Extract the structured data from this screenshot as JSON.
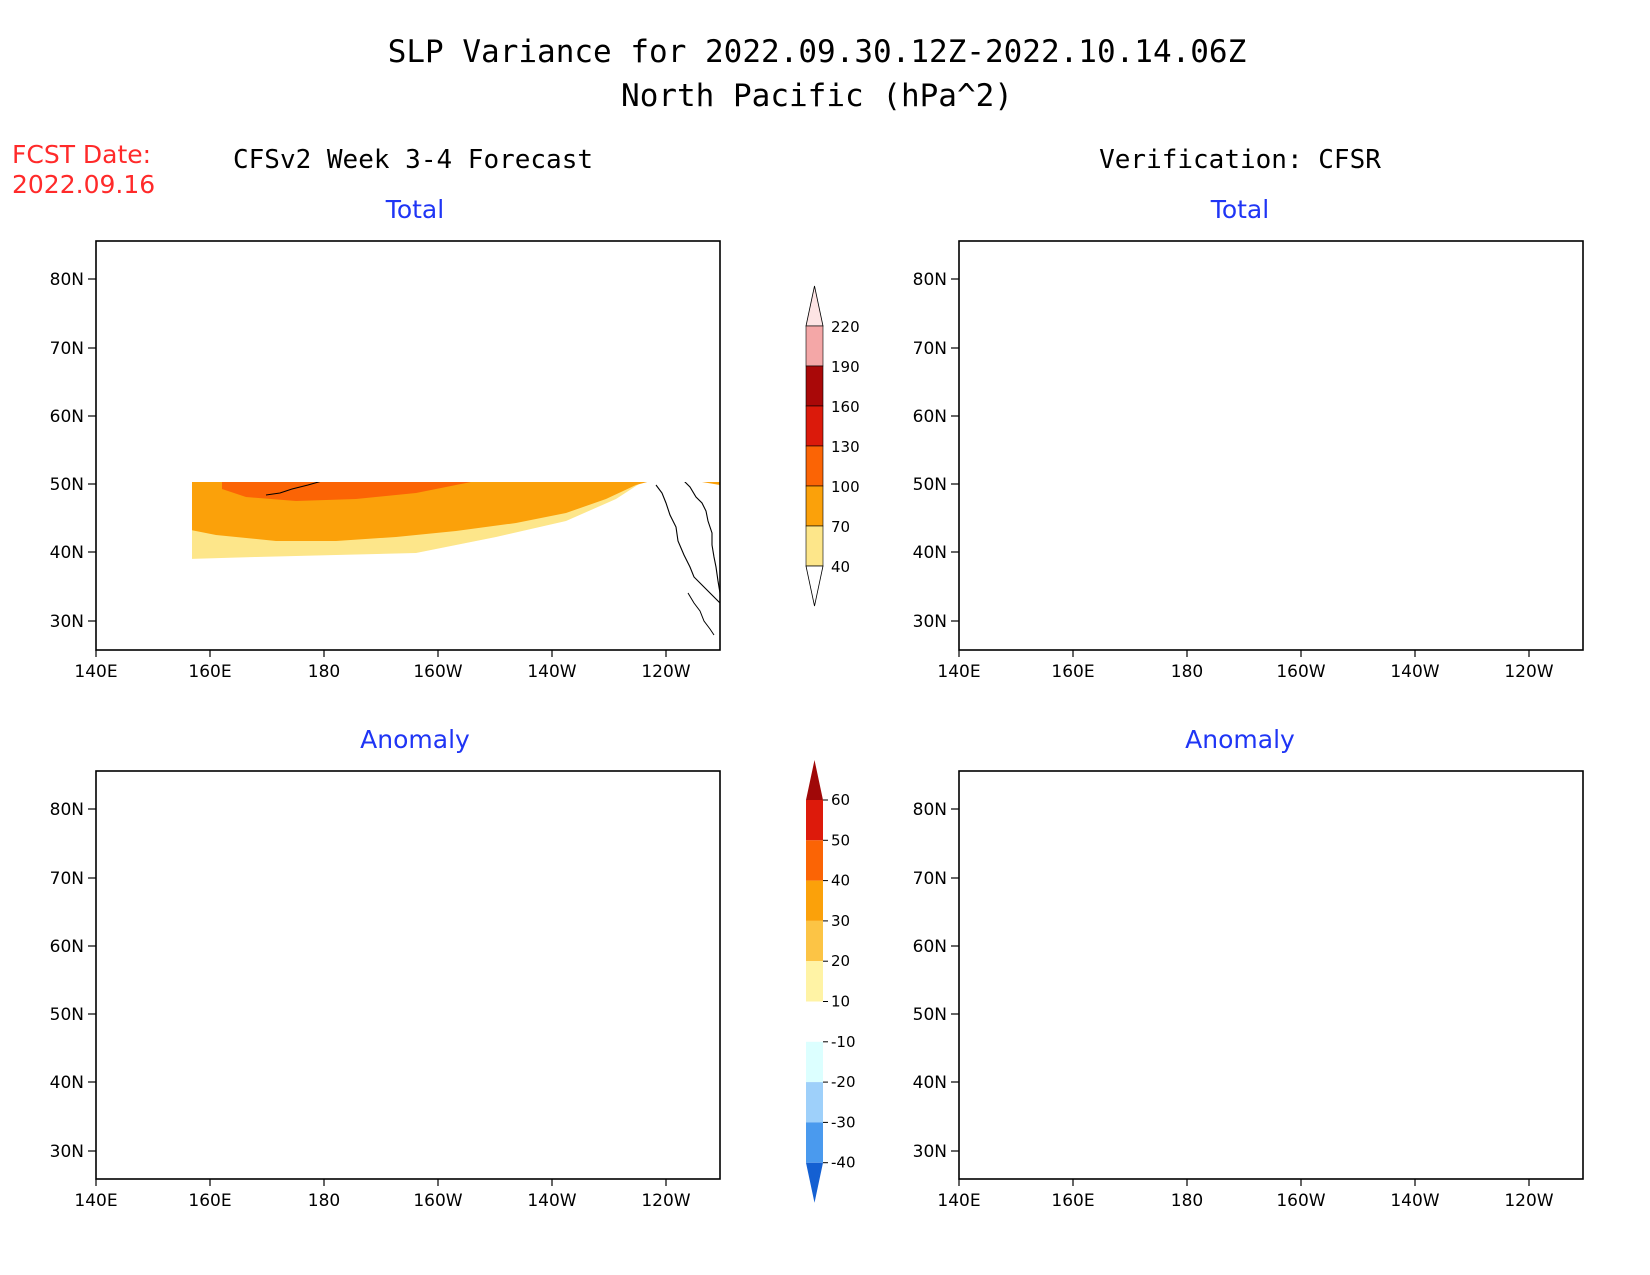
{
  "header": {
    "title_line1": "SLP Variance for 2022.09.30.12Z-2022.10.14.06Z",
    "title_line2": "North Pacific (hPa^2)"
  },
  "fcst": {
    "label": "FCST Date:",
    "date": "2022.09.16"
  },
  "columns": {
    "forecast": "CFSv2 Week 3-4 Forecast",
    "verification": "Verification: CFSR"
  },
  "panels": {
    "top_left": "Total",
    "top_right": "Total",
    "bottom_left": "Anomaly",
    "bottom_right": "Anomaly"
  },
  "axes": {
    "lat_labels": [
      "80N",
      "70N",
      "60N",
      "50N",
      "40N",
      "30N"
    ],
    "lon_labels": [
      "140E",
      "160E",
      "180",
      "160W",
      "140W",
      "120W"
    ]
  },
  "colorbars": {
    "total": {
      "levels": [
        "40",
        "70",
        "100",
        "130",
        "160",
        "190",
        "220"
      ],
      "colors": [
        "#ffffff",
        "#fde68a",
        "#fba10a",
        "#fb6405",
        "#db1a0b",
        "#a90808",
        "#f4a7a7",
        "#fde4e4"
      ]
    },
    "anomaly": {
      "levels": [
        "60",
        "50",
        "40",
        "30",
        "20",
        "10",
        "-10",
        "-20",
        "-30",
        "-40"
      ],
      "colors": [
        "#a00808",
        "#dd1a0b",
        "#fb6405",
        "#fba10a",
        "#fcc445",
        "#fff3a5",
        "#ffffff",
        "#dcffff",
        "#9ed0fa",
        "#4a9aee",
        "#1460d2"
      ]
    }
  },
  "palette": {
    "title_blue": "#1f35f5",
    "fcst_red": "#ff2a2a",
    "coast": "#000000"
  }
}
